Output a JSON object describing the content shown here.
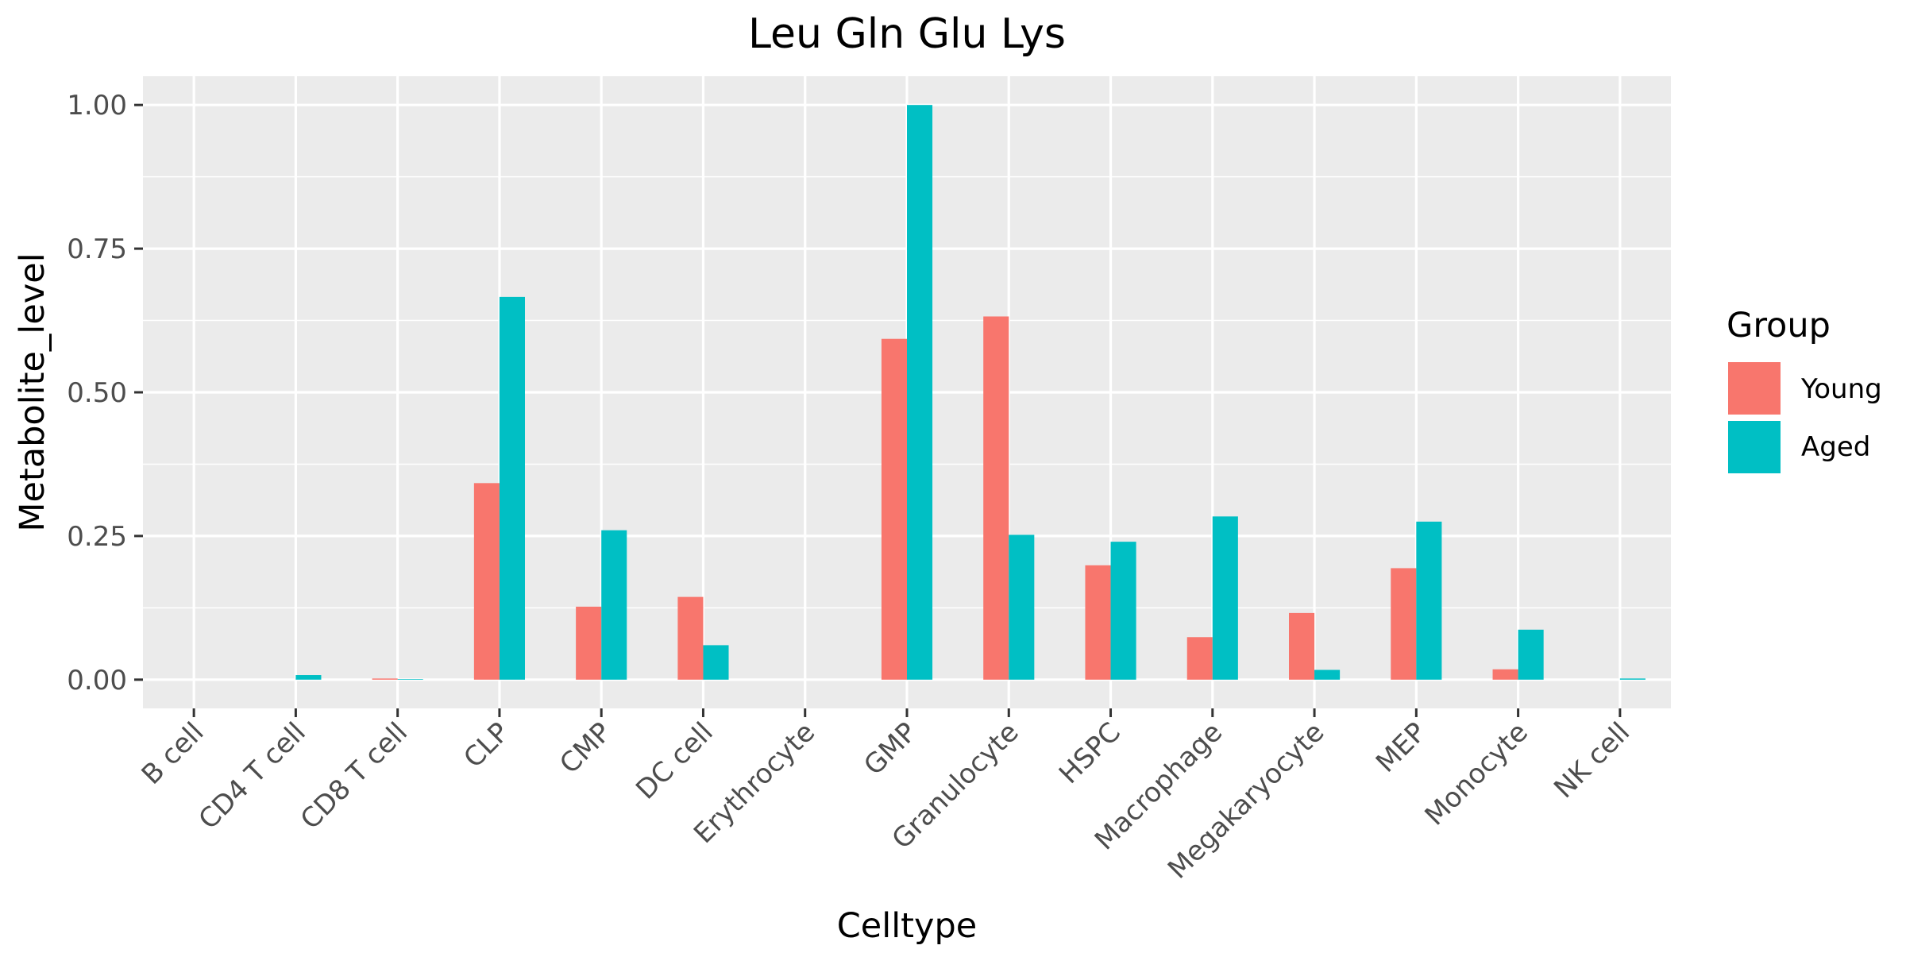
{
  "chart_data": {
    "type": "bar",
    "title": "Leu Gln Glu Lys",
    "xlabel": "Celltype",
    "ylabel": "Metabolite_level",
    "ylim": [
      -0.05,
      1.05
    ],
    "yticks": [
      0,
      0.25,
      0.5,
      0.75,
      1
    ],
    "ytick_labels": [
      "0.00",
      "0.25",
      "0.50",
      "0.75",
      "1.00"
    ],
    "grid": true,
    "legend": {
      "title": "Group",
      "position": "right"
    },
    "categories": [
      "B cell",
      "CD4 T cell",
      "CD8 T cell",
      "CLP",
      "CMP",
      "DC cell",
      "Erythrocyte",
      "GMP",
      "Granulocyte",
      "HSPC",
      "Macrophage",
      "Megakaryocyte",
      "MEP",
      "Monocyte",
      "NK cell"
    ],
    "series": [
      {
        "name": "Young",
        "color": "#F8766D",
        "values": [
          0,
          0,
          0.002,
          0.342,
          0.127,
          0.144,
          0,
          0.593,
          0.632,
          0.199,
          0.074,
          0.116,
          0.194,
          0.018,
          0
        ]
      },
      {
        "name": "Aged",
        "color": "#00BFC4",
        "values": [
          0,
          0.008,
          0.001,
          0.666,
          0.26,
          0.06,
          0,
          1.0,
          0.252,
          0.24,
          0.284,
          0.017,
          0.275,
          0.087,
          0.002
        ]
      }
    ]
  }
}
